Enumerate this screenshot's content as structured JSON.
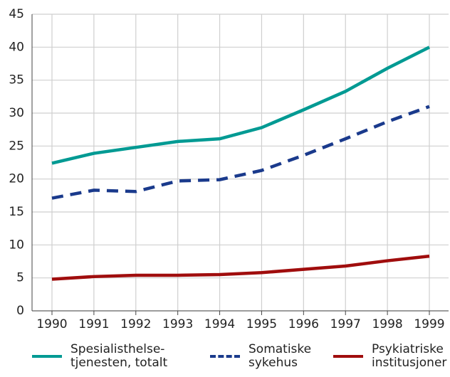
{
  "chart_data": {
    "type": "line",
    "categories": [
      "1990",
      "1991",
      "1992",
      "1993",
      "1994",
      "1995",
      "1996",
      "1997",
      "1998",
      "1999"
    ],
    "series": [
      {
        "name": "Spesialisthelse-\ntjenesten, totalt",
        "color": "#009a93",
        "dash": "solid",
        "values": [
          22.4,
          23.9,
          24.8,
          25.7,
          26.1,
          27.8,
          30.5,
          33.3,
          36.8,
          40.0
        ]
      },
      {
        "name": "Somatiske\nsykehus",
        "color": "#1a3a8c",
        "dash": "dashed",
        "values": [
          17.1,
          18.3,
          18.1,
          19.7,
          19.9,
          21.3,
          23.6,
          26.1,
          28.7,
          31.0
        ]
      },
      {
        "name": "Psykiatriske\ninstitusjoner",
        "color": "#a00d0d",
        "dash": "solid",
        "values": [
          4.8,
          5.2,
          5.4,
          5.4,
          5.5,
          5.8,
          6.3,
          6.8,
          7.6,
          8.3
        ]
      }
    ],
    "ylim": [
      0,
      45
    ],
    "yticks": [
      0,
      5,
      10,
      15,
      20,
      25,
      30,
      35,
      40,
      45
    ],
    "grid": true
  }
}
